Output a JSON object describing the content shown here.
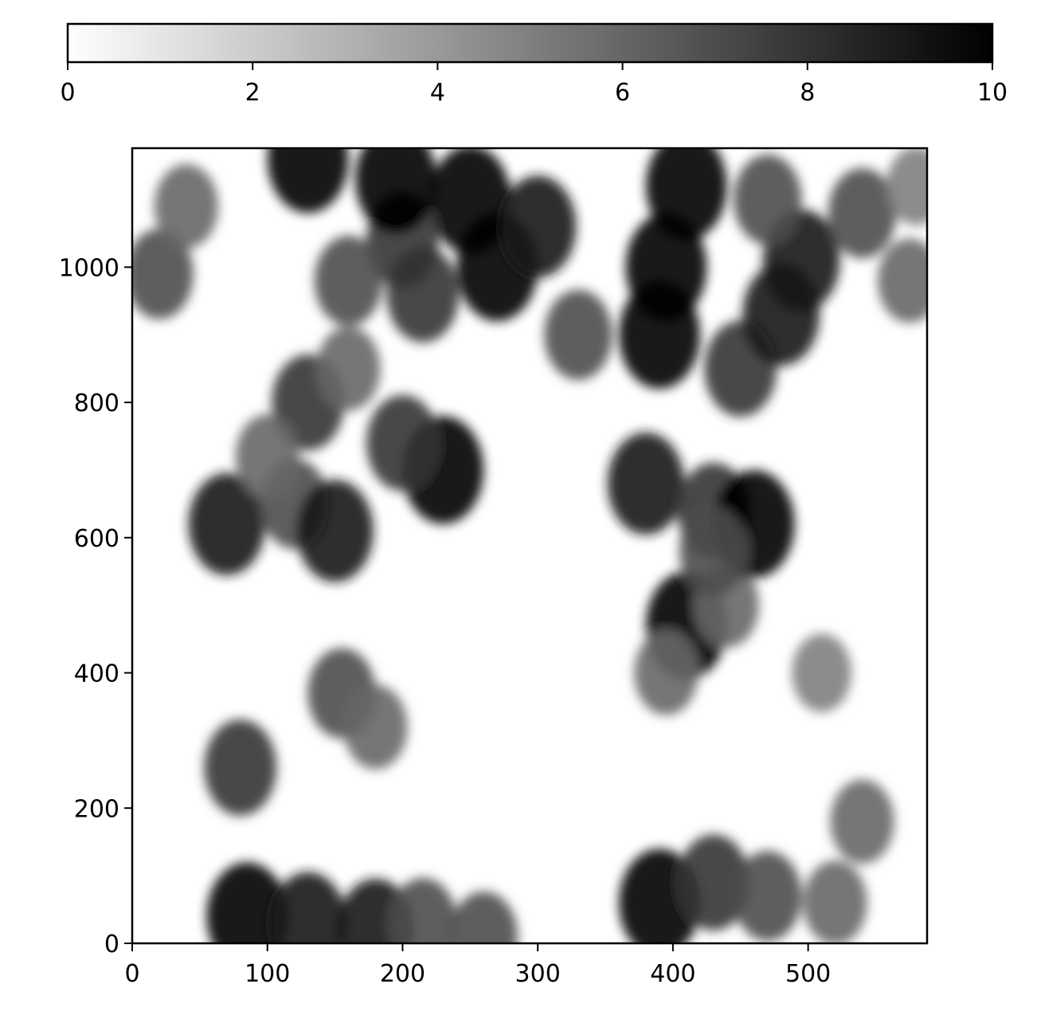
{
  "chart_data": {
    "type": "heatmap",
    "title": "",
    "xlabel": "",
    "ylabel": "",
    "colormap": "gray_r",
    "colors": {
      "low": "#ffffff",
      "high": "#000000"
    },
    "colorbar": {
      "orientation": "horizontal",
      "placement": "top",
      "range": [
        0,
        10
      ],
      "ticks": [
        0,
        2,
        4,
        6,
        8,
        10
      ],
      "tick_labels": [
        "0",
        "2",
        "4",
        "6",
        "8",
        "10"
      ]
    },
    "x_axis": {
      "range": [
        0,
        588
      ],
      "ticks": [
        0,
        100,
        200,
        300,
        400,
        500
      ],
      "tick_labels": [
        "0",
        "100",
        "200",
        "300",
        "400",
        "500"
      ]
    },
    "y_axis": {
      "range": [
        0,
        1176
      ],
      "ticks": [
        0,
        200,
        400,
        600,
        800,
        1000
      ],
      "tick_labels": [
        "0",
        "200",
        "400",
        "600",
        "800",
        "1000"
      ]
    },
    "dense_regions": [
      {
        "x": 85,
        "y": 40,
        "value": 10
      },
      {
        "x": 130,
        "y": 30,
        "value": 9
      },
      {
        "x": 180,
        "y": 20,
        "value": 9
      },
      {
        "x": 215,
        "y": 30,
        "value": 7
      },
      {
        "x": 260,
        "y": 10,
        "value": 7
      },
      {
        "x": 390,
        "y": 60,
        "value": 10
      },
      {
        "x": 430,
        "y": 90,
        "value": 8
      },
      {
        "x": 470,
        "y": 70,
        "value": 7
      },
      {
        "x": 520,
        "y": 60,
        "value": 6
      },
      {
        "x": 80,
        "y": 260,
        "value": 8
      },
      {
        "x": 540,
        "y": 180,
        "value": 6
      },
      {
        "x": 155,
        "y": 370,
        "value": 7
      },
      {
        "x": 180,
        "y": 320,
        "value": 6
      },
      {
        "x": 410,
        "y": 470,
        "value": 10
      },
      {
        "x": 440,
        "y": 500,
        "value": 6
      },
      {
        "x": 395,
        "y": 400,
        "value": 6
      },
      {
        "x": 510,
        "y": 400,
        "value": 5
      },
      {
        "x": 70,
        "y": 620,
        "value": 9
      },
      {
        "x": 120,
        "y": 650,
        "value": 7
      },
      {
        "x": 150,
        "y": 610,
        "value": 9
      },
      {
        "x": 230,
        "y": 700,
        "value": 10
      },
      {
        "x": 200,
        "y": 740,
        "value": 8
      },
      {
        "x": 130,
        "y": 800,
        "value": 8
      },
      {
        "x": 160,
        "y": 850,
        "value": 6
      },
      {
        "x": 100,
        "y": 720,
        "value": 6
      },
      {
        "x": 380,
        "y": 680,
        "value": 9
      },
      {
        "x": 430,
        "y": 640,
        "value": 8
      },
      {
        "x": 460,
        "y": 620,
        "value": 10
      },
      {
        "x": 430,
        "y": 580,
        "value": 7
      },
      {
        "x": 390,
        "y": 900,
        "value": 10
      },
      {
        "x": 395,
        "y": 1000,
        "value": 10
      },
      {
        "x": 410,
        "y": 1120,
        "value": 10
      },
      {
        "x": 450,
        "y": 850,
        "value": 8
      },
      {
        "x": 480,
        "y": 930,
        "value": 9
      },
      {
        "x": 495,
        "y": 1010,
        "value": 9
      },
      {
        "x": 540,
        "y": 1080,
        "value": 7
      },
      {
        "x": 330,
        "y": 900,
        "value": 7
      },
      {
        "x": 270,
        "y": 1000,
        "value": 10
      },
      {
        "x": 250,
        "y": 1100,
        "value": 10
      },
      {
        "x": 300,
        "y": 1060,
        "value": 9
      },
      {
        "x": 200,
        "y": 1040,
        "value": 8
      },
      {
        "x": 195,
        "y": 1130,
        "value": 10
      },
      {
        "x": 130,
        "y": 1160,
        "value": 10
      },
      {
        "x": 215,
        "y": 960,
        "value": 8
      },
      {
        "x": 160,
        "y": 980,
        "value": 7
      },
      {
        "x": 20,
        "y": 990,
        "value": 7
      },
      {
        "x": 40,
        "y": 1090,
        "value": 6
      },
      {
        "x": 470,
        "y": 1100,
        "value": 7
      },
      {
        "x": 575,
        "y": 980,
        "value": 6
      },
      {
        "x": 580,
        "y": 1120,
        "value": 5
      }
    ]
  }
}
